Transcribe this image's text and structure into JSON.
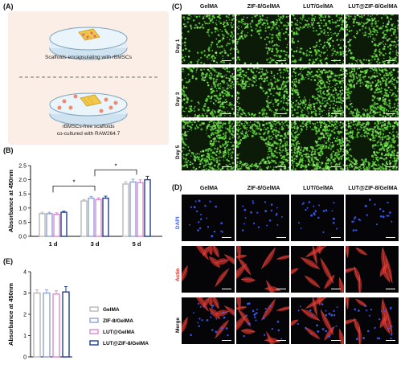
{
  "panels": {
    "a": {
      "letter": "(A)",
      "cap1": "Scaffolds encapsulating with rBMSCs",
      "cap2a": "rBMSCs-free scaffolds",
      "cap2b": "co-cultured with RAW264.7"
    },
    "b": {
      "letter": "(B)"
    },
    "c": {
      "letter": "(C)",
      "columns": [
        "GelMA",
        "ZIF-8/GelMA",
        "LUT/GelMA",
        "LUT@ZIF-8/GelMA"
      ],
      "rows": [
        "Day 1",
        "Day 3",
        "Day 5"
      ]
    },
    "d": {
      "letter": "(D)",
      "columns": [
        "GelMA",
        "ZIF-8/GelMA",
        "LUT/GelMA",
        "LUT@ZIF-8/GelMA"
      ],
      "rows": [
        "DAPI",
        "Actin",
        "Merge"
      ]
    },
    "e": {
      "letter": "(E)"
    }
  },
  "colors": {
    "gelma": "#b8b8b8",
    "zif": "#8fa3d6",
    "lut": "#d98ad0",
    "lutzif": "#1f3f8f",
    "green_cells": "#5fd13a",
    "red_actin": "#d4302a",
    "blue_dapi": "#3b5bff"
  },
  "chart_data": [
    {
      "type": "bar",
      "panel": "B",
      "categories": [
        "1 d",
        "3 d",
        "5 d"
      ],
      "series": [
        {
          "name": "GelMA",
          "values": [
            0.8,
            1.25,
            1.85
          ]
        },
        {
          "name": "ZIF-8/GelMA",
          "values": [
            0.8,
            1.35,
            1.92
          ]
        },
        {
          "name": "LUT@GelMA",
          "values": [
            0.78,
            1.3,
            1.9
          ]
        },
        {
          "name": "LUT@ZIF-8/GelMA",
          "values": [
            0.85,
            1.35,
            2.0
          ]
        }
      ],
      "errors": [
        [
          0.05,
          0.05,
          0.08
        ],
        [
          0.05,
          0.06,
          0.1
        ],
        [
          0.05,
          0.06,
          0.1
        ],
        [
          0.04,
          0.07,
          0.12
        ]
      ],
      "ylabel": "Absorbance at 450nm",
      "ylim": [
        0,
        2.5
      ],
      "yticks": [
        "0.0",
        "0.5",
        "1.0",
        "1.5",
        "2.0",
        "2.5"
      ],
      "significance": [
        "*",
        "*"
      ]
    },
    {
      "type": "bar",
      "panel": "E",
      "categories": [
        ""
      ],
      "series": [
        {
          "name": "GelMA",
          "values": [
            3.0
          ]
        },
        {
          "name": "ZIF-8/GelMA",
          "values": [
            3.0
          ]
        },
        {
          "name": "LUT@GelMA",
          "values": [
            2.95
          ]
        },
        {
          "name": "LUT@ZIF-8/GelMA",
          "values": [
            3.05
          ]
        }
      ],
      "errors": [
        [
          0.15
        ],
        [
          0.15
        ],
        [
          0.15
        ],
        [
          0.25
        ]
      ],
      "ylabel": "Absorbance at 450nm",
      "ylim": [
        0,
        4
      ],
      "yticks": [
        "0",
        "1",
        "2",
        "3",
        "4"
      ],
      "legend": [
        "GelMA",
        "ZIF-8/GelMA",
        "LUT@GelMA",
        "LUT@ZIF-8/GelMA"
      ]
    }
  ]
}
